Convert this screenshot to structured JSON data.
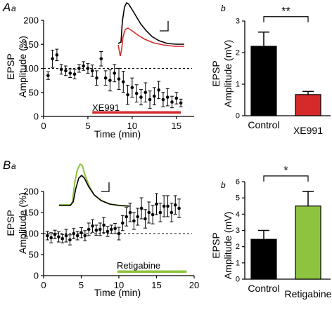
{
  "panels": {
    "Aa": {
      "letter": "A",
      "sub": "a"
    },
    "Ab": {
      "sub": "b"
    },
    "Ba": {
      "letter": "B",
      "sub": "a"
    },
    "Bb": {
      "sub": "b"
    }
  },
  "colors": {
    "control": "#000000",
    "xe991": "#d42a2a",
    "retigabine": "#8dc33f",
    "axis": "#000000"
  },
  "chart_data": [
    {
      "id": "Aa",
      "type": "scatter",
      "xlabel": "Time (min)",
      "ylabel": "EPSP Amplitude (%)",
      "xlim": [
        0,
        17
      ],
      "ylim": [
        0,
        200
      ],
      "xticks": [
        0,
        5,
        10,
        15
      ],
      "yticks": [
        0,
        50,
        100,
        150,
        200
      ],
      "reference_line": 100,
      "drug_bar": {
        "label": "XE991",
        "start": 5.5,
        "end": 15.5
      },
      "points": [
        {
          "x": 0.5,
          "y": 85,
          "err": 8
        },
        {
          "x": 1.0,
          "y": 120,
          "err": 18
        },
        {
          "x": 1.5,
          "y": 128,
          "err": 12
        },
        {
          "x": 2.0,
          "y": 98,
          "err": 10
        },
        {
          "x": 2.5,
          "y": 95,
          "err": 10
        },
        {
          "x": 3.0,
          "y": 90,
          "err": 9
        },
        {
          "x": 3.5,
          "y": 88,
          "err": 10
        },
        {
          "x": 4.0,
          "y": 100,
          "err": 8
        },
        {
          "x": 4.5,
          "y": 105,
          "err": 9
        },
        {
          "x": 5.0,
          "y": 100,
          "err": 10
        },
        {
          "x": 5.5,
          "y": 95,
          "err": 12
        },
        {
          "x": 6.0,
          "y": 80,
          "err": 15
        },
        {
          "x": 6.5,
          "y": 120,
          "err": 15
        },
        {
          "x": 7.0,
          "y": 80,
          "err": 15
        },
        {
          "x": 7.5,
          "y": 75,
          "err": 22
        },
        {
          "x": 8.0,
          "y": 90,
          "err": 18
        },
        {
          "x": 8.5,
          "y": 78,
          "err": 22
        },
        {
          "x": 9.0,
          "y": 72,
          "err": 22
        },
        {
          "x": 9.5,
          "y": 45,
          "err": 20
        },
        {
          "x": 10.0,
          "y": 60,
          "err": 20
        },
        {
          "x": 10.5,
          "y": 48,
          "err": 18
        },
        {
          "x": 11.0,
          "y": 40,
          "err": 16
        },
        {
          "x": 11.5,
          "y": 50,
          "err": 20
        },
        {
          "x": 12.0,
          "y": 35,
          "err": 18
        },
        {
          "x": 12.5,
          "y": 42,
          "err": 18
        },
        {
          "x": 13.0,
          "y": 55,
          "err": 18
        },
        {
          "x": 13.5,
          "y": 35,
          "err": 15
        },
        {
          "x": 14.0,
          "y": 40,
          "err": 18
        },
        {
          "x": 14.5,
          "y": 30,
          "err": 12
        },
        {
          "x": 15.0,
          "y": 38,
          "err": 12
        },
        {
          "x": 15.5,
          "y": 28,
          "err": 8
        }
      ]
    },
    {
      "id": "Ab",
      "type": "bar",
      "ylabel": "EPSP Amplitude (mV)",
      "ylim": [
        0,
        3
      ],
      "yticks": [
        0,
        1,
        2,
        3
      ],
      "categories": [
        "Control",
        "XE991"
      ],
      "values": [
        2.2,
        0.67
      ],
      "errors": [
        0.45,
        0.1
      ],
      "significance": "**"
    },
    {
      "id": "Ba",
      "type": "scatter",
      "xlabel": "Time (min)",
      "ylabel": "EPSP Amplitude (%)",
      "xlim": [
        0,
        20
      ],
      "ylim": [
        0,
        250
      ],
      "xticks": [
        0,
        5,
        10,
        15,
        20
      ],
      "yticks": [
        0,
        50,
        100,
        150,
        200
      ],
      "reference_line": 100,
      "drug_bar": {
        "label": "Retigabine",
        "start": 9.8,
        "end": 19
      },
      "points": [
        {
          "x": 0.5,
          "y": 95,
          "err": 10
        },
        {
          "x": 1.0,
          "y": 90,
          "err": 12
        },
        {
          "x": 1.5,
          "y": 98,
          "err": 10
        },
        {
          "x": 2.0,
          "y": 92,
          "err": 12
        },
        {
          "x": 2.5,
          "y": 88,
          "err": 10
        },
        {
          "x": 3.0,
          "y": 95,
          "err": 15
        },
        {
          "x": 3.5,
          "y": 85,
          "err": 12
        },
        {
          "x": 4.0,
          "y": 100,
          "err": 12
        },
        {
          "x": 4.5,
          "y": 95,
          "err": 10
        },
        {
          "x": 5.0,
          "y": 102,
          "err": 12
        },
        {
          "x": 5.5,
          "y": 95,
          "err": 12
        },
        {
          "x": 6.0,
          "y": 110,
          "err": 15
        },
        {
          "x": 6.5,
          "y": 118,
          "err": 15
        },
        {
          "x": 7.0,
          "y": 108,
          "err": 12
        },
        {
          "x": 7.5,
          "y": 110,
          "err": 15
        },
        {
          "x": 8.0,
          "y": 120,
          "err": 18
        },
        {
          "x": 8.5,
          "y": 105,
          "err": 12
        },
        {
          "x": 9.0,
          "y": 110,
          "err": 10
        },
        {
          "x": 9.5,
          "y": 112,
          "err": 12
        },
        {
          "x": 10.0,
          "y": 100,
          "err": 15
        },
        {
          "x": 10.5,
          "y": 125,
          "err": 18
        },
        {
          "x": 11.0,
          "y": 140,
          "err": 22
        },
        {
          "x": 11.5,
          "y": 150,
          "err": 22
        },
        {
          "x": 12.0,
          "y": 130,
          "err": 20
        },
        {
          "x": 12.5,
          "y": 140,
          "err": 20
        },
        {
          "x": 13.0,
          "y": 160,
          "err": 25
        },
        {
          "x": 13.5,
          "y": 135,
          "err": 22
        },
        {
          "x": 14.0,
          "y": 150,
          "err": 25
        },
        {
          "x": 14.5,
          "y": 145,
          "err": 22
        },
        {
          "x": 15.0,
          "y": 170,
          "err": 25
        },
        {
          "x": 15.5,
          "y": 150,
          "err": 22
        },
        {
          "x": 16.0,
          "y": 165,
          "err": 25
        },
        {
          "x": 16.5,
          "y": 165,
          "err": 25
        },
        {
          "x": 17.0,
          "y": 150,
          "err": 22
        },
        {
          "x": 17.5,
          "y": 168,
          "err": 22
        },
        {
          "x": 18.0,
          "y": 160,
          "err": 22
        }
      ]
    },
    {
      "id": "Bb",
      "type": "bar",
      "ylabel": "EPSP Amplitude (mV)",
      "ylim": [
        0,
        6
      ],
      "yticks": [
        0,
        1,
        2,
        3,
        4,
        5,
        6
      ],
      "categories": [
        "Control",
        "Retigabine"
      ],
      "values": [
        2.45,
        4.5
      ],
      "errors": [
        0.55,
        0.9
      ],
      "significance": "*"
    }
  ]
}
